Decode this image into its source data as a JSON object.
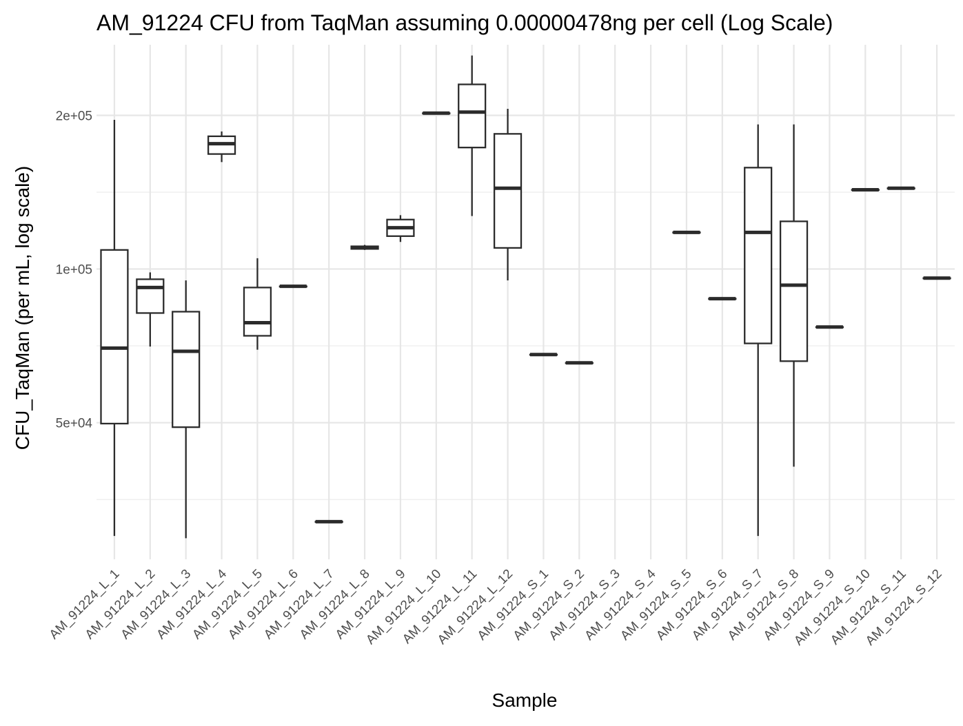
{
  "chart_data": {
    "type": "box",
    "title": "AM_91224 CFU from TaqMan assuming 0.00000478ng per cell (Log Scale)",
    "xlabel": "Sample",
    "ylabel": "CFU_TaqMan (per mL, log scale)",
    "y_scale": "log10",
    "ylim": [
      27000,
      275000
    ],
    "y_ticks": [
      {
        "value": 50000,
        "label": "5e+04"
      },
      {
        "value": 100000,
        "label": "1e+05"
      },
      {
        "value": 200000,
        "label": "2e+05"
      }
    ],
    "grid": true,
    "categories": [
      "AM_91224_L_1",
      "AM_91224_L_2",
      "AM_91224_L_3",
      "AM_91224_L_4",
      "AM_91224_L_5",
      "AM_91224_L_6",
      "AM_91224_L_7",
      "AM_91224_L_8",
      "AM_91224_L_9",
      "AM_91224_L_10",
      "AM_91224_L_11",
      "AM_91224_L_12",
      "AM_91224_S_1",
      "AM_91224_S_2",
      "AM_91224_S_3",
      "AM_91224_S_4",
      "AM_91224_S_5",
      "AM_91224_S_6",
      "AM_91224_S_7",
      "AM_91224_S_8",
      "AM_91224_S_9",
      "AM_91224_S_10",
      "AM_91224_S_11",
      "AM_91224_S_12"
    ],
    "boxes": [
      {
        "min": 30000,
        "q1": 49800,
        "median": 70000,
        "q3": 109000,
        "max": 196000
      },
      {
        "min": 70500,
        "q1": 82000,
        "median": 92000,
        "q3": 95500,
        "max": 98500
      },
      {
        "min": 29700,
        "q1": 49000,
        "median": 69000,
        "q3": 82500,
        "max": 95000
      },
      {
        "min": 162000,
        "q1": 168000,
        "median": 176000,
        "q3": 182000,
        "max": 186000
      },
      {
        "min": 69500,
        "q1": 74000,
        "median": 78500,
        "q3": 92000,
        "max": 105000
      },
      {
        "min": 92500,
        "q1": 92500,
        "median": 92500,
        "q3": 92500,
        "max": 92500
      },
      {
        "min": 32000,
        "q1": 32000,
        "median": 32000,
        "q3": 32000,
        "max": 32000
      },
      {
        "min": 109000,
        "q1": 109500,
        "median": 110000,
        "q3": 110800,
        "max": 111500
      },
      {
        "min": 113000,
        "q1": 116000,
        "median": 120500,
        "q3": 125000,
        "max": 127500
      },
      {
        "min": 202000,
        "q1": 202000,
        "median": 202000,
        "q3": 202000,
        "max": 202000
      },
      {
        "min": 127000,
        "q1": 173000,
        "median": 203000,
        "q3": 230000,
        "max": 262000
      },
      {
        "min": 95000,
        "q1": 110000,
        "median": 144000,
        "q3": 184000,
        "max": 206000
      },
      {
        "min": 68000,
        "q1": 68000,
        "median": 68000,
        "q3": 68000,
        "max": 68000
      },
      {
        "min": 65500,
        "q1": 65500,
        "median": 65500,
        "q3": 65500,
        "max": 65500
      },
      null,
      null,
      {
        "min": 118000,
        "q1": 118000,
        "median": 118000,
        "q3": 118000,
        "max": 118000
      },
      {
        "min": 87500,
        "q1": 87500,
        "median": 87500,
        "q3": 87500,
        "max": 87500
      },
      {
        "min": 30000,
        "q1": 71500,
        "median": 118000,
        "q3": 158000,
        "max": 192000
      },
      {
        "min": 41000,
        "q1": 66000,
        "median": 93000,
        "q3": 124000,
        "max": 192000
      },
      {
        "min": 77000,
        "q1": 77000,
        "median": 77000,
        "q3": 77000,
        "max": 77000
      },
      {
        "min": 143000,
        "q1": 143000,
        "median": 143000,
        "q3": 143000,
        "max": 143000
      },
      {
        "min": 144000,
        "q1": 144000,
        "median": 144000,
        "q3": 144000,
        "max": 144000
      },
      {
        "min": 96000,
        "q1": 96000,
        "median": 96000,
        "q3": 96000,
        "max": 96000
      }
    ]
  }
}
